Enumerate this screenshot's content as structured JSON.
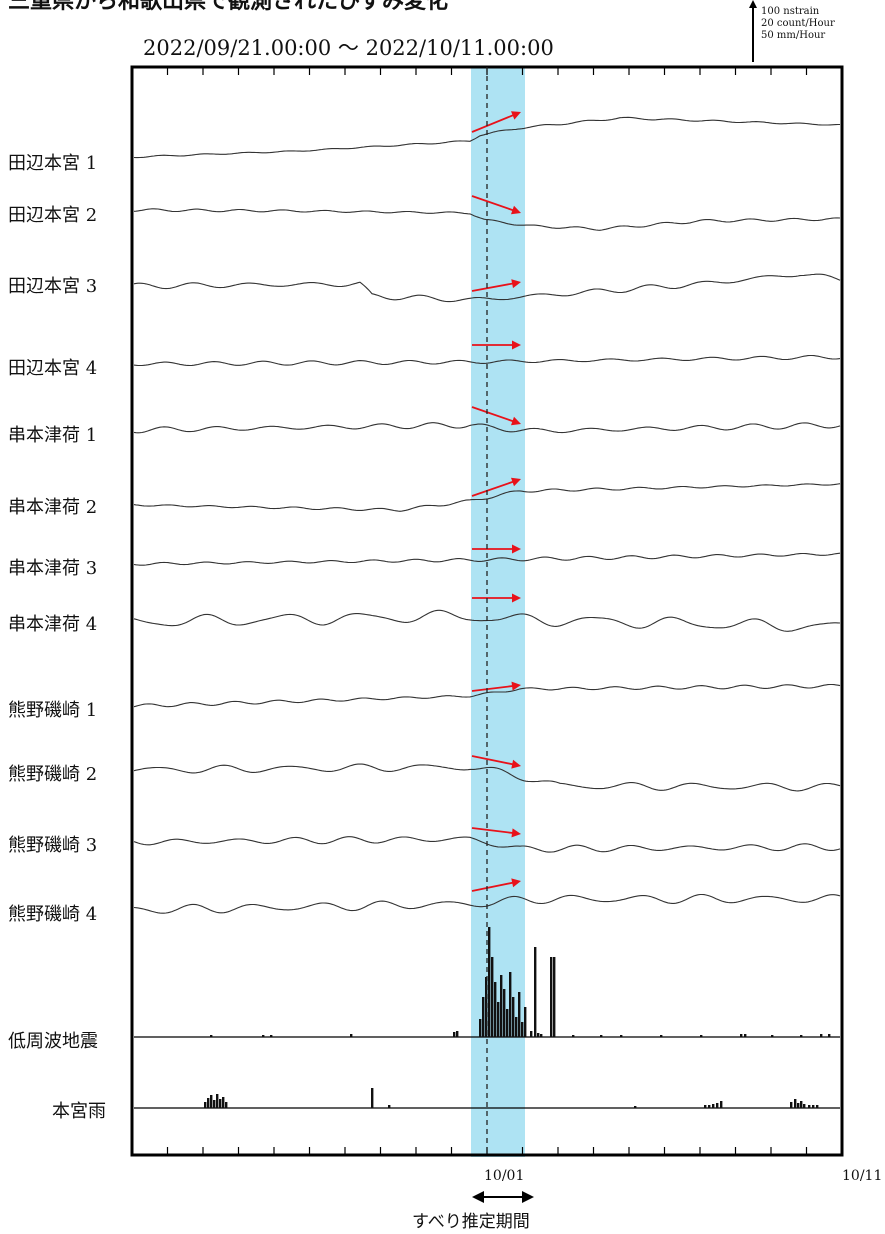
{
  "chart_data": {
    "type": "line",
    "title": "三重県から和歌山県で観測されたひずみ変化",
    "date_range": "2022/09/21.00:00 〜 2022/10/11.00:00",
    "scale_legend": [
      "100 nstrain",
      "20 count/Hour",
      "50 mm/Hour"
    ],
    "x_tick_labels": [
      "10/01",
      "10/11"
    ],
    "slip_period_label": "すべり推定期間",
    "colors": {
      "slip_band": "#aee3f3",
      "arrow": "#e8121a",
      "trace": "#333333"
    },
    "series": [
      {
        "name": "田辺本宮 1",
        "pattern": "step-up"
      },
      {
        "name": "田辺本宮 2",
        "pattern": "step-down"
      },
      {
        "name": "田辺本宮 3",
        "pattern": "step-down"
      },
      {
        "name": "田辺本宮 4",
        "pattern": "flat"
      },
      {
        "name": "串本津荷 1",
        "pattern": "step-down"
      },
      {
        "name": "串本津荷 2",
        "pattern": "step-up"
      },
      {
        "name": "串本津荷 3",
        "pattern": "flat"
      },
      {
        "name": "串本津荷 4",
        "pattern": "flat"
      },
      {
        "name": "熊野磯崎 1",
        "pattern": "step-up"
      },
      {
        "name": "熊野磯崎 2",
        "pattern": "step-down"
      },
      {
        "name": "熊野磯崎 3",
        "pattern": "step-down"
      },
      {
        "name": "熊野磯崎 4",
        "pattern": "step-up"
      },
      {
        "name": "低周波地震",
        "pattern": "histogram"
      },
      {
        "name": "本宮雨",
        "pattern": "histogram"
      }
    ]
  }
}
